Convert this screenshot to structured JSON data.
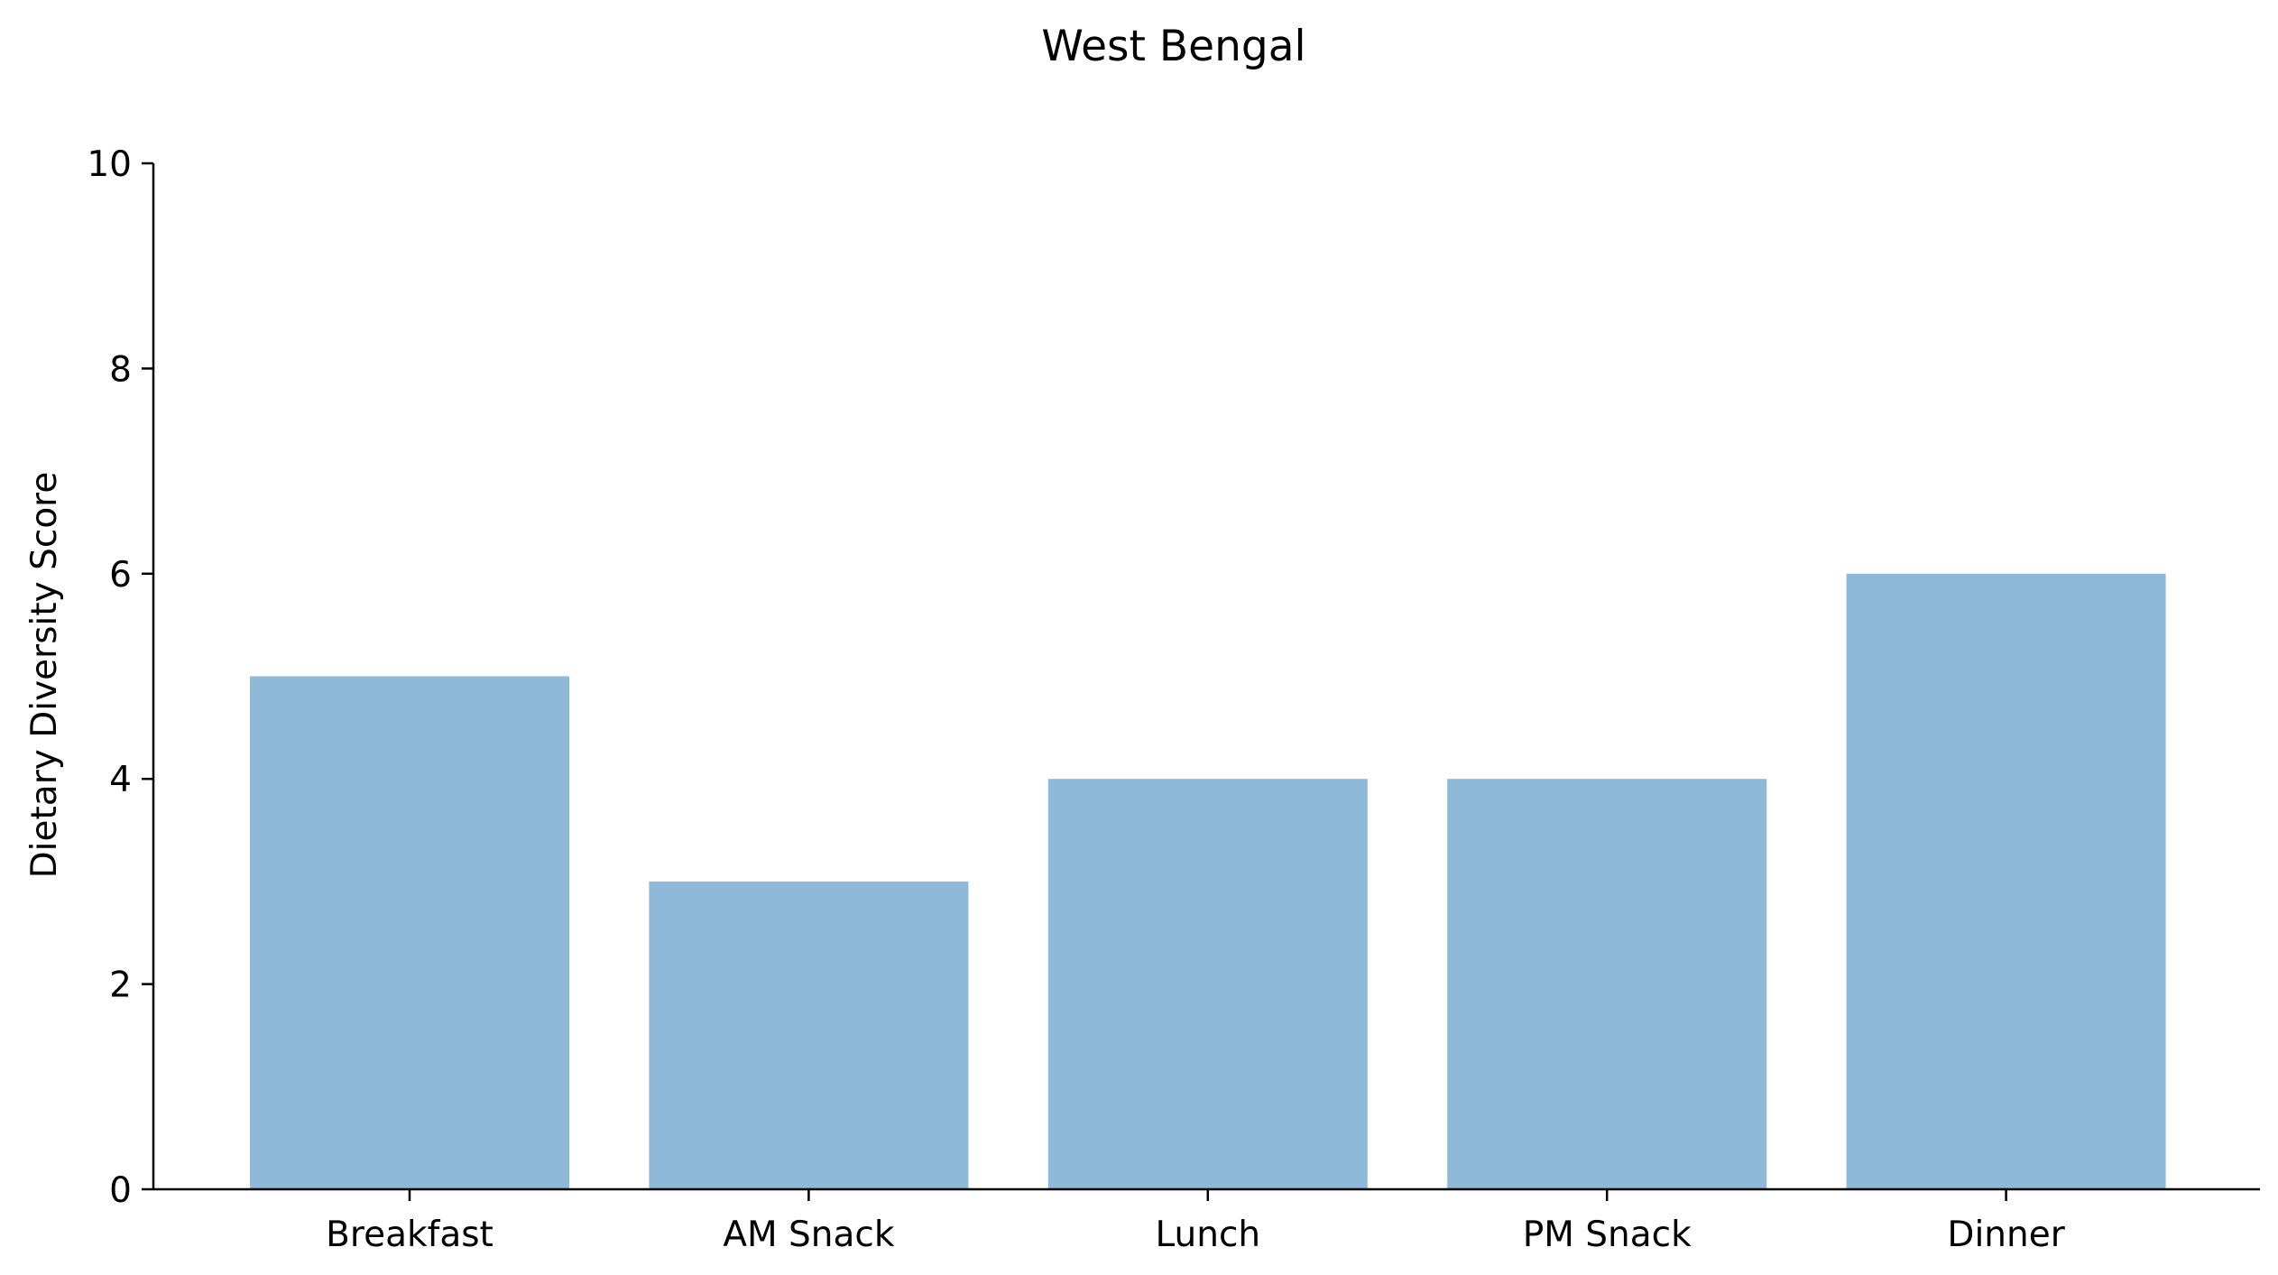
{
  "chart_data": {
    "type": "bar",
    "title": "West Bengal",
    "xlabel": "",
    "ylabel": "Dietary Diversity Score",
    "categories": [
      "Breakfast",
      "AM Snack",
      "Lunch",
      "PM Snack",
      "Dinner"
    ],
    "values": [
      5,
      3,
      4,
      4,
      6
    ],
    "ylim": [
      0,
      10
    ],
    "yticks": [
      0,
      2,
      4,
      6,
      8,
      10
    ],
    "grid": false,
    "legend": "none",
    "bar_color": "#8fb9d8",
    "axis_color": "#000000"
  }
}
